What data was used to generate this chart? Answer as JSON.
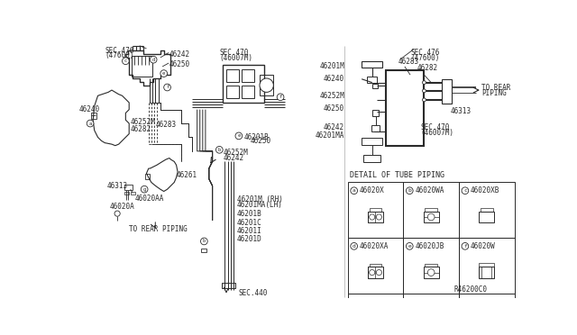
{
  "bg_color": "#ffffff",
  "line_color": "#2a2a2a",
  "ref_code": "R46200C0",
  "detail_title": "DETAIL OF TUBE PIPING",
  "schematic": {
    "labels_left": [
      "46201M",
      "46240",
      "46252M",
      "46250",
      "46242",
      "46201MA"
    ],
    "labels_right_top": [
      "SEC.476\n(47600)",
      "46283",
      "46282"
    ],
    "label_to_rear": "TO REAR\nPIPING",
    "label_313": "46313",
    "label_sec470": "SEC.470\n(46007M)"
  },
  "detail_cells": [
    {
      "label": "a",
      "part": "46020X",
      "col": 0,
      "row": 1
    },
    {
      "label": "b",
      "part": "46020WA",
      "col": 1,
      "row": 1
    },
    {
      "label": "c",
      "part": "46020XB",
      "col": 2,
      "row": 1
    },
    {
      "label": "d",
      "part": "46020XA",
      "col": 0,
      "row": 0
    },
    {
      "label": "e",
      "part": "46020JB",
      "col": 1,
      "row": 0
    },
    {
      "label": "f",
      "part": "46020W",
      "col": 2,
      "row": 0
    }
  ]
}
